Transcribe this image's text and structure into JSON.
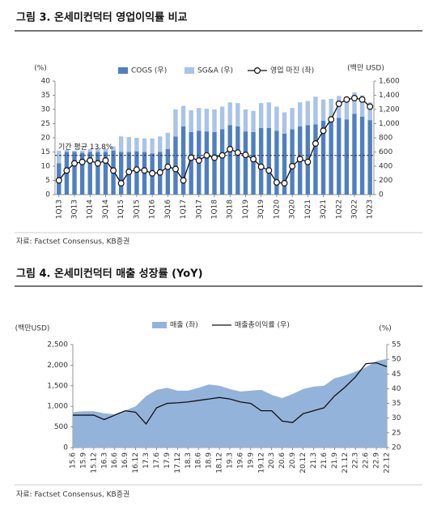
{
  "chart_data": [
    {
      "type": "combo",
      "title": "그림 3. 온세미컨덕터 영업이익률 비교",
      "source": "자료: Factset Consensus, KB증권",
      "y_label": "(%)",
      "y2_label": "(백만 USD)",
      "categories": [
        "1Q13",
        null,
        "3Q13",
        null,
        "1Q14",
        null,
        "3Q14",
        null,
        "1Q15",
        null,
        "3Q15",
        null,
        "1Q16",
        null,
        "3Q16",
        null,
        "1Q17",
        null,
        "3Q17",
        null,
        "1Q18",
        null,
        "3Q18",
        null,
        "1Q19",
        null,
        "3Q19",
        null,
        "1Q20",
        null,
        "3Q20",
        null,
        "1Q21",
        null,
        "3Q21",
        null,
        "1Q22",
        null,
        "3Q22",
        null,
        "1Q23"
      ],
      "stacked": true,
      "series": [
        {
          "name": "COGS (우)",
          "type": "bar",
          "axis": "y2",
          "color": "#4f7fc0",
          "values": [
            440,
            600,
            600,
            590,
            600,
            600,
            600,
            620,
            600,
            600,
            610,
            600,
            580,
            600,
            640,
            820,
            960,
            880,
            900,
            890,
            880,
            920,
            980,
            960,
            890,
            880,
            940,
            940,
            900,
            860,
            920,
            960,
            980,
            990,
            1040,
            1050,
            1080,
            1060,
            1140,
            1100,
            1050
          ]
        },
        {
          "name": "SG&A (우)",
          "type": "bar",
          "axis": "y2",
          "color": "#a9c4e6",
          "values": [
            180,
            30,
            20,
            30,
            40,
            50,
            50,
            60,
            220,
            210,
            190,
            190,
            210,
            220,
            230,
            380,
            290,
            310,
            320,
            320,
            320,
            320,
            320,
            330,
            310,
            300,
            350,
            360,
            340,
            300,
            300,
            340,
            340,
            390,
            300,
            300,
            310,
            300,
            300,
            300,
            250
          ]
        },
        {
          "name": "영업 마진 (좌)",
          "type": "line",
          "marker": true,
          "color": "#111111",
          "values": [
            5.0,
            8.5,
            11.0,
            11.5,
            12.0,
            11.0,
            12.0,
            8.5,
            4.0,
            8.0,
            8.8,
            8.5,
            7.5,
            7.8,
            9.8,
            9.0,
            5.0,
            13.0,
            12.0,
            13.8,
            13.0,
            13.8,
            16.0,
            14.8,
            14.0,
            12.5,
            9.8,
            8.5,
            4.3,
            4.0,
            10.0,
            12.5,
            11.5,
            18.0,
            22.5,
            26.5,
            32.0,
            33.5,
            34.0,
            33.5,
            31.0
          ]
        }
      ],
      "average": 13.8,
      "average_label": "기간 평균 13.8%",
      "ylim": [
        0,
        40
      ],
      "yticks": [
        0,
        5,
        10,
        15,
        20,
        25,
        30,
        35,
        40
      ],
      "y2lim": [
        0,
        1600
      ],
      "y2ticks": [
        0,
        200,
        400,
        600,
        800,
        {
          "value": 1000,
          "label": "1,000"
        },
        {
          "value": 1200,
          "label": "1,200"
        },
        {
          "value": 1400,
          "label": "1,400"
        },
        {
          "value": 1600,
          "label": "1,600"
        }
      ],
      "grid": false
    },
    {
      "type": "combo",
      "title": "그림 4. 온세미컨덕터 매출 성장률 (YoY)",
      "source": "자료: Factset Consensus, KB증권",
      "y_label": "(백만USD)",
      "y2_label": "(%)",
      "categories": [
        "15.6",
        "15.9",
        "15.12",
        "16.3",
        "16.6",
        "16.9",
        "16.12",
        "17.3",
        "17.6",
        "17.9",
        "17.12",
        "18.3",
        "18.6",
        "18.9",
        "18.12",
        "19.3",
        "19.6",
        "19.9",
        "19.12",
        "20.3",
        "20.6",
        "20.9",
        "20.12",
        "21.3",
        "21.6",
        "21.9",
        "21.12",
        "22.3",
        "22.6",
        "22.9",
        "22.12"
      ],
      "series": [
        {
          "name": "매출 (좌)",
          "type": "area",
          "color": "#94b3da",
          "values": [
            860,
            880,
            880,
            830,
            810,
            900,
            1000,
            1250,
            1400,
            1450,
            1380,
            1380,
            1450,
            1530,
            1500,
            1420,
            1360,
            1380,
            1400,
            1280,
            1200,
            1300,
            1420,
            1480,
            1500,
            1680,
            1750,
            1840,
            1950,
            2100,
            2150
          ]
        },
        {
          "name": "매출총이익률 (우)",
          "type": "line",
          "axis": "y2",
          "color": "#111111",
          "values": [
            31,
            31,
            31,
            29.5,
            31,
            32.5,
            32,
            28,
            33.5,
            35,
            35.2,
            35.5,
            36,
            36.5,
            37,
            36.5,
            35.5,
            35,
            32.5,
            32.5,
            29,
            28.5,
            31.5,
            32.5,
            33.5,
            37.5,
            40.5,
            44,
            48.5,
            48.8,
            47.5
          ]
        }
      ],
      "ylim": [
        0,
        2500
      ],
      "yticks": [
        0,
        500,
        {
          "value": 1000,
          "label": "1,000"
        },
        {
          "value": 1500,
          "label": "1,500"
        },
        {
          "value": 2000,
          "label": "2,000"
        },
        {
          "value": 2500,
          "label": "2,500"
        }
      ],
      "y2lim": [
        20,
        55
      ],
      "y2ticks": [
        20,
        25,
        30,
        35,
        40,
        45,
        50,
        55
      ],
      "grid": false
    }
  ]
}
